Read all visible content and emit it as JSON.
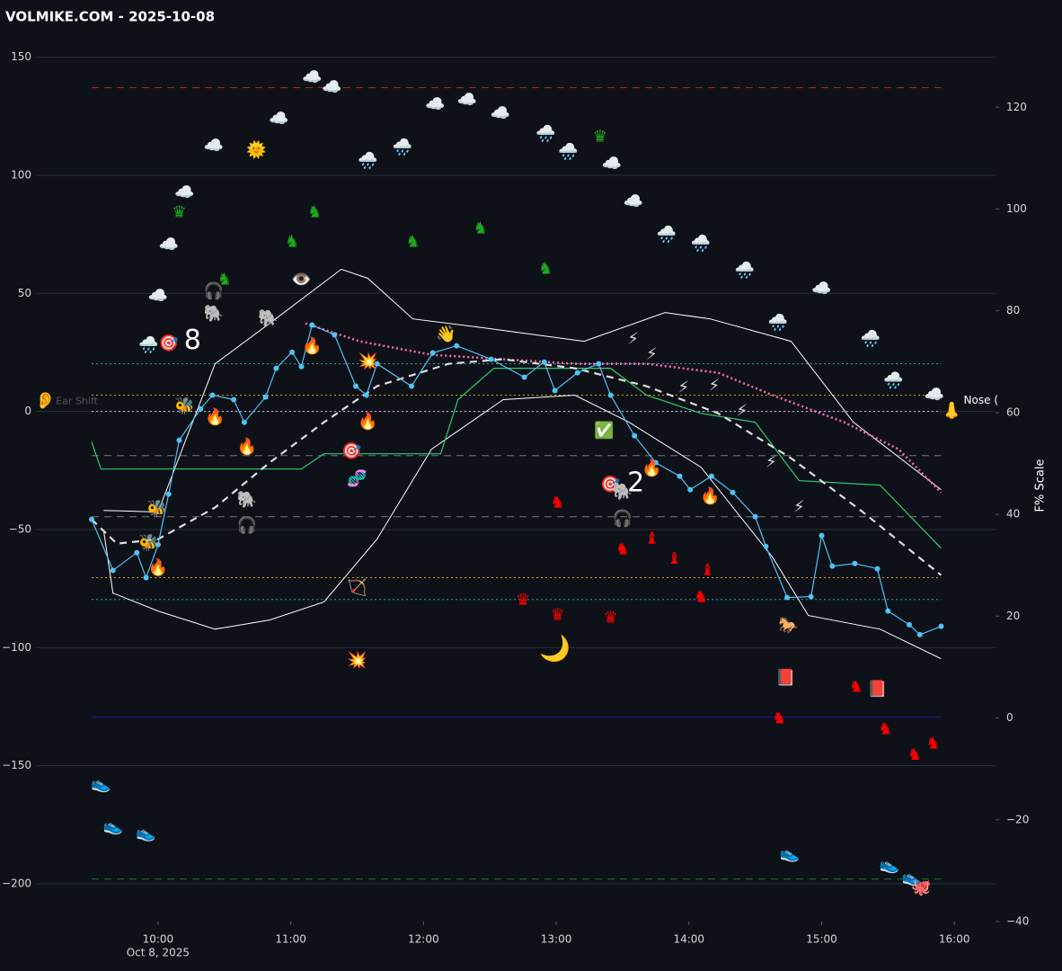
{
  "chart_data": {
    "type": "line",
    "title": "VOLMIKE.COM  - 2025-10-08",
    "date_label": "Oct 8, 2025",
    "y2_label": "F% Scale",
    "grid": true,
    "xlim": [
      9.08,
      16.31
    ],
    "xticks": [
      {
        "value": 10,
        "label": "10:00"
      },
      {
        "value": 11,
        "label": "11:00"
      },
      {
        "value": 12,
        "label": "12:00"
      },
      {
        "value": 13,
        "label": "13:00"
      },
      {
        "value": 14,
        "label": "14:00"
      },
      {
        "value": 15,
        "label": "15:00"
      },
      {
        "value": 16,
        "label": "16:00"
      }
    ],
    "ylim": [
      -216,
      159
    ],
    "yticks": [
      150,
      100,
      50,
      0,
      {
        "value": -50,
        "label": "−50"
      },
      {
        "value": -100,
        "label": "−100"
      },
      {
        "value": -150,
        "label": "−150"
      },
      {
        "value": -200,
        "label": "−200"
      }
    ],
    "y2lim": [
      -40,
      134
    ],
    "y2ticks": [
      120,
      100,
      80,
      60,
      40,
      20,
      0,
      {
        "value": -20,
        "label": "−20"
      },
      {
        "value": -40,
        "label": "−40"
      }
    ],
    "hlines": [
      {
        "value": 137.1,
        "color": "#b22222",
        "style": "dashed"
      },
      {
        "value": 20.2,
        "color": "#20b2aa",
        "style": "dotted"
      },
      {
        "value": 6.9,
        "color": "#d4a017",
        "style": "dotted"
      },
      {
        "value": 0,
        "color": "#e0b0ff",
        "style": "dotted"
      },
      {
        "value": -18.7,
        "color": "#777777",
        "style": "dashed"
      },
      {
        "value": -44.6,
        "color": "#777777",
        "style": "dashed"
      },
      {
        "value": -70.4,
        "color": "#d4a017",
        "style": "dotted"
      },
      {
        "value": -79.6,
        "color": "#20b2aa",
        "style": "dotted"
      },
      {
        "value": -129.5,
        "color": "#1a1aa0",
        "style": "solid"
      },
      {
        "value": -198.0,
        "color": "#1f7a1f",
        "style": "dashed"
      }
    ],
    "series": [
      {
        "color": "#ffffff",
        "style": "solid",
        "width": 1,
        "x": [
          9.59,
          10.0,
          10.43,
          10.84,
          11.38,
          11.58,
          11.92,
          12.46,
          13.21,
          13.82,
          14.16,
          14.77,
          15.24,
          15.9
        ],
        "values": [
          -41.9,
          -42.6,
          20.2,
          37.3,
          60.2,
          56.4,
          39.2,
          35.4,
          29.7,
          41.9,
          39.2,
          29.7,
          -4.6,
          -33.1
        ]
      },
      {
        "color": "#ffffff",
        "style": "solid",
        "width": 1,
        "x": [
          9.59,
          9.66,
          10.0,
          10.43,
          10.84,
          11.25,
          11.65,
          12.06,
          12.6,
          13.14,
          13.55,
          14.09,
          14.63,
          14.9,
          15.44,
          15.9
        ],
        "values": [
          -50.3,
          -76.9,
          -84.5,
          -92.2,
          -88.3,
          -80.7,
          -54.1,
          -16.0,
          5.0,
          6.9,
          -4.6,
          -23.6,
          -61.7,
          -86.4,
          -92.2,
          -104.7
        ]
      },
      {
        "color": "#2ecc71",
        "style": "solid",
        "width": 1.2,
        "x": [
          9.5,
          9.57,
          11.08,
          11.25,
          12.13,
          12.26,
          12.53,
          12.87,
          13.41,
          13.68,
          14.09,
          14.5,
          14.83,
          15.44,
          15.9
        ],
        "values": [
          -12.9,
          -24.4,
          -24.4,
          -17.9,
          -17.9,
          5.0,
          18.3,
          18.3,
          18.3,
          6.9,
          -0.8,
          -4.6,
          -29.3,
          -31.2,
          -57.9
        ]
      },
      {
        "color": "#ff69b4",
        "style": "dotted",
        "width": 2.5,
        "x": [
          11.11,
          11.52,
          12.06,
          12.6,
          13.14,
          13.68,
          14.22,
          14.63,
          15.17,
          15.58,
          15.9
        ],
        "values": [
          37.3,
          29.7,
          24.0,
          22.1,
          20.2,
          20.2,
          16.4,
          6.9,
          -4.6,
          -16.0,
          -34.3
        ]
      },
      {
        "color": "#dddddd",
        "style": "dashed",
        "width": 2.2,
        "x": [
          9.5,
          9.69,
          10.0,
          10.43,
          10.84,
          11.25,
          11.65,
          12.19,
          12.6,
          13.14,
          13.68,
          14.22,
          14.77,
          15.31,
          15.9
        ],
        "values": [
          -45.7,
          -56.0,
          -54.1,
          -40.7,
          -21.7,
          -4.6,
          10.7,
          20.2,
          22.1,
          18.3,
          10.7,
          -0.8,
          -19.8,
          -42.6,
          -69.3
        ]
      },
      {
        "color": "#4fc3f7",
        "style": "solid",
        "width": 1.2,
        "dots": true,
        "x": [
          9.5,
          9.66,
          9.84,
          9.91,
          10.0,
          10.08,
          10.16,
          10.32,
          10.41,
          10.57,
          10.65,
          10.81,
          10.89,
          11.01,
          11.08,
          11.16,
          11.33,
          11.49,
          11.57,
          11.65,
          11.91,
          12.07,
          12.25,
          12.51,
          12.76,
          12.91,
          12.99,
          13.16,
          13.32,
          13.41,
          13.59,
          13.75,
          13.93,
          14.01,
          14.17,
          14.33,
          14.5,
          14.58,
          14.74,
          14.92,
          15.0,
          15.08,
          15.25,
          15.42,
          15.5,
          15.66,
          15.74,
          15.9
        ],
        "values": [
          -45.7,
          -67.3,
          -59.8,
          -70.4,
          -56.4,
          -35.0,
          -12.2,
          1.1,
          6.9,
          5.0,
          -4.6,
          6.1,
          18.3,
          25.1,
          19.0,
          36.6,
          32.4,
          10.7,
          6.9,
          20.2,
          10.7,
          24.8,
          27.8,
          22.1,
          14.5,
          20.9,
          8.8,
          16.4,
          20.2,
          6.9,
          -10.3,
          -21.7,
          -27.4,
          -33.1,
          -27.4,
          -34.3,
          -44.6,
          -57.1,
          -78.8,
          -78.4,
          -52.6,
          -65.5,
          -64.4,
          -66.6,
          -84.5,
          -90.3,
          -94.5,
          -91.0
        ]
      }
    ],
    "annotations": [
      {
        "text": "🌧️",
        "x": 9.93,
        "y": 27.8
      },
      {
        "text": "☁️",
        "x": 10.0,
        "y": 48.7
      },
      {
        "text": "☁️",
        "x": 10.08,
        "y": 70.4
      },
      {
        "text": "☁️",
        "x": 10.2,
        "y": 92.5
      },
      {
        "text": "☁️",
        "x": 10.42,
        "y": 112.3
      },
      {
        "text": "🌞",
        "x": 10.74,
        "y": 110.4
      },
      {
        "text": "☁️",
        "x": 10.91,
        "y": 123.8
      },
      {
        "text": "☁️",
        "x": 11.16,
        "y": 141.3
      },
      {
        "text": "☁️",
        "x": 11.31,
        "y": 137.1
      },
      {
        "text": "🌧️",
        "x": 11.58,
        "y": 105.9
      },
      {
        "text": "🌧️",
        "x": 11.84,
        "y": 111.6
      },
      {
        "text": "☁️",
        "x": 12.09,
        "y": 129.9
      },
      {
        "text": "☁️",
        "x": 12.33,
        "y": 131.8
      },
      {
        "text": "☁️",
        "x": 12.58,
        "y": 126.0
      },
      {
        "text": "🌧️",
        "x": 12.92,
        "y": 117.3
      },
      {
        "text": "🌧️",
        "x": 13.09,
        "y": 109.7
      },
      {
        "text": "☁️",
        "x": 13.42,
        "y": 104.7
      },
      {
        "text": "☁️",
        "x": 13.58,
        "y": 88.7
      },
      {
        "text": "🌧️",
        "x": 13.83,
        "y": 74.6
      },
      {
        "text": "🌧️",
        "x": 14.09,
        "y": 70.8
      },
      {
        "text": "🌧️",
        "x": 14.42,
        "y": 59.4
      },
      {
        "text": "🌧️",
        "x": 14.67,
        "y": 37.3
      },
      {
        "text": "☁️",
        "x": 15.0,
        "y": 51.8
      },
      {
        "text": "🌧️",
        "x": 15.37,
        "y": 30.5
      },
      {
        "text": "🌧️",
        "x": 15.54,
        "y": 12.9
      },
      {
        "text": "☁️",
        "x": 15.85,
        "y": 6.9
      },
      {
        "text": "♛",
        "x": 13.33,
        "y": 116.1,
        "color": "#1faa1f"
      },
      {
        "text": "♛",
        "x": 10.16,
        "y": 84.2,
        "color": "#1faa1f"
      },
      {
        "text": "♞",
        "x": 11.18,
        "y": 84.2,
        "color": "#1faa1f"
      },
      {
        "text": "♞",
        "x": 11.92,
        "y": 71.6,
        "color": "#1faa1f"
      },
      {
        "text": "♞",
        "x": 12.43,
        "y": 77.3,
        "color": "#1faa1f"
      },
      {
        "text": "♞",
        "x": 12.92,
        "y": 60.2,
        "color": "#1faa1f"
      },
      {
        "text": "♞",
        "x": 11.01,
        "y": 71.6,
        "color": "#1faa1f"
      },
      {
        "text": "♞",
        "x": 10.5,
        "y": 55.6,
        "color": "#1faa1f"
      },
      {
        "text": "🎯",
        "x": 10.08,
        "y": 28.6
      },
      {
        "text": "🎯",
        "x": 11.46,
        "y": -17.1
      },
      {
        "text": "🎯",
        "x": 13.41,
        "y": -31.2
      },
      {
        "text": "8",
        "x": 10.26,
        "y": 29.7,
        "color": "#ffffff",
        "size": 30
      },
      {
        "text": "2",
        "x": 13.6,
        "y": -30.5,
        "color": "#ffffff",
        "size": 30
      },
      {
        "text": "🔥",
        "x": 10.43,
        "y": -2.7
      },
      {
        "text": "🔥",
        "x": 10.67,
        "y": -15.2
      },
      {
        "text": "🔥",
        "x": 11.58,
        "y": -4.6
      },
      {
        "text": "🔥",
        "x": 11.16,
        "y": 27.4
      },
      {
        "text": "🔥",
        "x": 13.72,
        "y": -24.4
      },
      {
        "text": "🔥",
        "x": 14.16,
        "y": -36.2
      },
      {
        "text": "🔥",
        "x": 10.0,
        "y": -66.3
      },
      {
        "text": "⚡",
        "x": 13.58,
        "y": 30.5
      },
      {
        "text": "⚡",
        "x": 13.72,
        "y": 24.0
      },
      {
        "text": "⚡",
        "x": 13.96,
        "y": 9.9
      },
      {
        "text": "⚡",
        "x": 14.19,
        "y": 10.7
      },
      {
        "text": "⚡",
        "x": 14.4,
        "y": 0.0
      },
      {
        "text": "⚡",
        "x": 14.62,
        "y": -21.7
      },
      {
        "text": "⚡",
        "x": 14.83,
        "y": -40.7
      },
      {
        "text": "♞",
        "x": 13.01,
        "y": -38.8,
        "color": "#ff0000"
      },
      {
        "text": "♞",
        "x": 13.5,
        "y": -58.6,
        "color": "#ff0000"
      },
      {
        "text": "♞",
        "x": 14.09,
        "y": -78.8,
        "color": "#ff0000"
      },
      {
        "text": "♞",
        "x": 14.68,
        "y": -130.2,
        "color": "#ff0000"
      },
      {
        "text": "♞",
        "x": 15.26,
        "y": -116.9,
        "color": "#ff0000"
      },
      {
        "text": "♞",
        "x": 15.48,
        "y": -134.8,
        "color": "#ff0000"
      },
      {
        "text": "♞",
        "x": 15.7,
        "y": -145.5,
        "color": "#ff0000"
      },
      {
        "text": "♞",
        "x": 15.84,
        "y": -140.9,
        "color": "#ff0000"
      },
      {
        "text": "♝",
        "x": 13.72,
        "y": -54.1,
        "color": "#ff0000"
      },
      {
        "text": "♝",
        "x": 13.89,
        "y": -62.5,
        "color": "#ff0000"
      },
      {
        "text": "♝",
        "x": 14.14,
        "y": -67.4,
        "color": "#ff0000"
      },
      {
        "text": "♛",
        "x": 12.75,
        "y": -80.0,
        "color": "#ff0000"
      },
      {
        "text": "♛",
        "x": 13.01,
        "y": -86.4,
        "color": "#ff0000"
      },
      {
        "text": "♛",
        "x": 13.41,
        "y": -87.6,
        "color": "#ff0000"
      },
      {
        "text": "🌙",
        "x": 12.99,
        "y": -100.9,
        "size": 28
      },
      {
        "text": "💥",
        "x": 11.5,
        "y": -105.5
      },
      {
        "text": "💥",
        "x": 11.58,
        "y": 20.9
      },
      {
        "text": "🐘",
        "x": 10.42,
        "y": 41.1
      },
      {
        "text": "🐘",
        "x": 10.83,
        "y": 39.2
      },
      {
        "text": "🐘",
        "x": 10.67,
        "y": -37.7
      },
      {
        "text": "🐘",
        "x": 13.5,
        "y": -34.3
      },
      {
        "text": "🎧",
        "x": 10.42,
        "y": 50.6
      },
      {
        "text": "🎧",
        "x": 10.67,
        "y": -48.4
      },
      {
        "text": "🎧",
        "x": 13.5,
        "y": -45.7
      },
      {
        "text": "👁️",
        "x": 11.08,
        "y": 55.6
      },
      {
        "text": "🏹",
        "x": 11.5,
        "y": -75.0
      },
      {
        "text": "🧬",
        "x": 11.5,
        "y": -28.6
      },
      {
        "text": "👋",
        "x": 12.17,
        "y": 32.4
      },
      {
        "text": "✅",
        "x": 13.36,
        "y": -8.4
      },
      {
        "text": "🐎",
        "x": 14.75,
        "y": -91.0
      },
      {
        "text": "📕",
        "x": 14.73,
        "y": -113.1
      },
      {
        "text": "📕",
        "x": 15.42,
        "y": -117.7
      },
      {
        "text": "👟",
        "x": 9.57,
        "y": -158.0
      },
      {
        "text": "👟",
        "x": 9.66,
        "y": -175.9
      },
      {
        "text": "👟",
        "x": 9.91,
        "y": -178.6
      },
      {
        "text": "👟",
        "x": 14.76,
        "y": -187.4
      },
      {
        "text": "👟",
        "x": 15.51,
        "y": -192.3
      },
      {
        "text": "👟",
        "x": 15.68,
        "y": -197.6
      },
      {
        "text": "🐙",
        "x": 15.75,
        "y": -201.8
      },
      {
        "text": "🐝",
        "x": 10.2,
        "y": 1.9
      },
      {
        "text": "🐝",
        "x": 9.93,
        "y": -56.0
      },
      {
        "text": "🐝",
        "x": 9.99,
        "y": -41.5
      },
      {
        "text": "👂",
        "x": 9.15,
        "y": 4.2
      },
      {
        "text": "Ear Shift",
        "x": 9.23,
        "y": 4.2,
        "color": "#555555",
        "size": 11,
        "align": "start"
      },
      {
        "text": "👃",
        "x": 15.98,
        "y": 0.0
      },
      {
        "text": "Nose (",
        "x": 16.07,
        "y": 4.6,
        "color": "#ffffff",
        "size": 12,
        "align": "start"
      }
    ]
  }
}
